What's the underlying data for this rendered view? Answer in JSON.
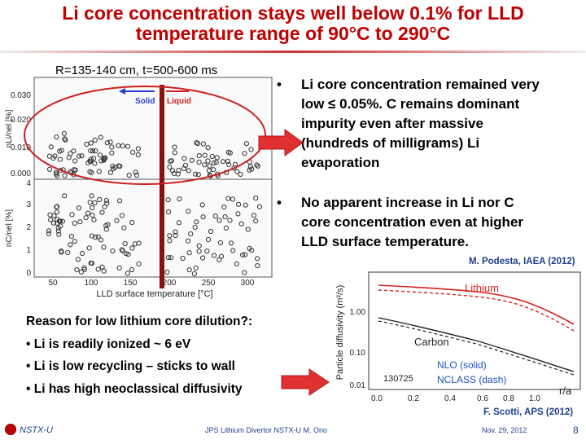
{
  "slide": {
    "title_line1": "Li core concentration stays well below 0.1% for LLD",
    "title_line2": "temperature range of 90°C to 290°C"
  },
  "left_plot": {
    "caption": "R=135-140 cm, t=500-600 ms",
    "solid_label": "Solid",
    "liquid_label": "Liquid",
    "top_ylabel": "nLi/nel [%]",
    "top_yticks": [
      "0.030",
      "0.020",
      "0.010",
      "0.000"
    ],
    "bottom_ylabel": "nC/nel [%]",
    "bottom_yticks": [
      "4",
      "3",
      "2",
      "1",
      "0"
    ],
    "xticks": [
      "50",
      "100",
      "150",
      "200",
      "250",
      "300"
    ],
    "xlabel": "LLD surface temperature [°C]"
  },
  "bullets": [
    {
      "symbol": "•",
      "lines": [
        "Li core concentration remained very",
        "low ≤ 0.05%.  C remains dominant",
        "impurity even after massive",
        "(hundreds of milligrams) Li",
        "evaporation"
      ]
    },
    {
      "symbol": "•",
      "lines": [
        "No apparent increase in Li nor C",
        "core concentration even at higher",
        "LLD surface temperature."
      ]
    }
  ],
  "citation_top": "M. Podesta, IAEA (2012)",
  "reason": {
    "heading": "Reason for low lithium core dilution?:",
    "items": [
      "• Li is readily ionized ~ 6 eV",
      "• Li is low recycling – sticks to wall",
      "• Li has high neoclassical diffusivity"
    ]
  },
  "right_plot": {
    "ylabel": "Particle diffusivity (m²/s)",
    "yticks": [
      "1.00",
      "0.10",
      "0.01"
    ],
    "xticks": [
      "0.0",
      "0.2",
      "0.4",
      "0.6",
      "0.8",
      "1.0"
    ],
    "xlabel": "r/a",
    "shot": "130725",
    "label_lithium": "Lithium",
    "label_carbon": "Carbon",
    "label_nlo": "NLO (solid)",
    "label_nclass": "NCLASS (dash)",
    "color_lithium": "#d62020",
    "color_nlo": "#2050c0"
  },
  "citation_bottom": "F. Scotti, APS (2012)",
  "footer": {
    "logo_text": "NSTX-U",
    "center": "JPS Lithium Divertor NSTX-U M. Ono",
    "date": "Nov. 29, 2012",
    "page": "8"
  },
  "accent_color": "#c00000"
}
